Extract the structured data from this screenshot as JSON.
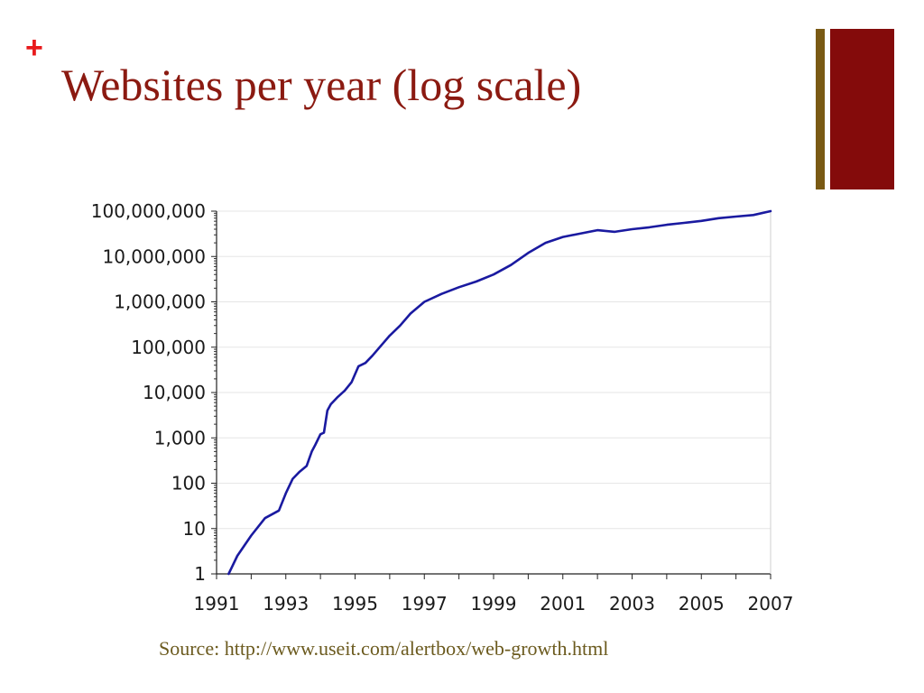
{
  "slide": {
    "bullet": "+",
    "title": "Websites per year (log scale)",
    "source": "Source: http://www.useit.com/alertbox/web-growth.html"
  },
  "colors": {
    "title": "#8b1a11",
    "bullet": "#e8191b",
    "accent_thin": "#7a5a14",
    "accent_thick": "#840b0b",
    "line": "#1a1aa0",
    "source_text": "#6b5a1e"
  },
  "chart_data": {
    "type": "line",
    "title": "",
    "xlabel": "",
    "ylabel": "",
    "xlim": [
      1991,
      2007
    ],
    "ylim": [
      1,
      100000000
    ],
    "y_scale": "log",
    "grid": true,
    "x_ticks": [
      {
        "value": 1991,
        "label": "1991"
      },
      {
        "value": 1993,
        "label": "1993"
      },
      {
        "value": 1995,
        "label": "1995"
      },
      {
        "value": 1997,
        "label": "1997"
      },
      {
        "value": 1999,
        "label": "1999"
      },
      {
        "value": 2001,
        "label": "2001"
      },
      {
        "value": 2003,
        "label": "2003"
      },
      {
        "value": 2005,
        "label": "2005"
      },
      {
        "value": 2007,
        "label": "2007"
      }
    ],
    "y_ticks": [
      {
        "value": 1,
        "label": "1"
      },
      {
        "value": 10,
        "label": "10"
      },
      {
        "value": 100,
        "label": "100"
      },
      {
        "value": 1000,
        "label": "1,000"
      },
      {
        "value": 10000,
        "label": "10,000"
      },
      {
        "value": 100000,
        "label": "100,000"
      },
      {
        "value": 1000000,
        "label": "1,000,000"
      },
      {
        "value": 10000000,
        "label": "10,000,000"
      },
      {
        "value": 100000000,
        "label": "100,000,000"
      }
    ],
    "series": [
      {
        "x": [
          1991.35,
          1991.6,
          1992.0,
          1992.4,
          1992.8,
          1993.0,
          1993.2,
          1993.4,
          1993.6,
          1993.75,
          1993.85,
          1994.0,
          1994.1,
          1994.2,
          1994.3,
          1994.5,
          1994.7,
          1994.9,
          1995.1,
          1995.3,
          1995.5,
          1995.8,
          1996.0,
          1996.3,
          1996.6,
          1997.0,
          1997.5,
          1998.0,
          1998.5,
          1999.0,
          1999.5,
          2000.0,
          2000.5,
          2001.0,
          2001.5,
          2002.0,
          2002.5,
          2003.0,
          2003.5,
          2004.0,
          2004.5,
          2005.0,
          2005.5,
          2006.0,
          2006.5,
          2007.0
        ],
        "y": [
          1,
          2.5,
          7,
          17,
          25,
          60,
          125,
          180,
          240,
          500,
          700,
          1200,
          1300,
          4000,
          5500,
          8000,
          11000,
          17000,
          38000,
          45000,
          65000,
          120000,
          180000,
          300000,
          550000,
          1000000,
          1500000,
          2100000,
          2800000,
          4000000,
          6500000,
          12000000,
          20000000,
          27000000,
          32000000,
          38000000,
          35000000,
          40000000,
          44000000,
          50000000,
          55000000,
          61000000,
          70000000,
          76000000,
          82000000,
          100000000
        ]
      }
    ]
  }
}
